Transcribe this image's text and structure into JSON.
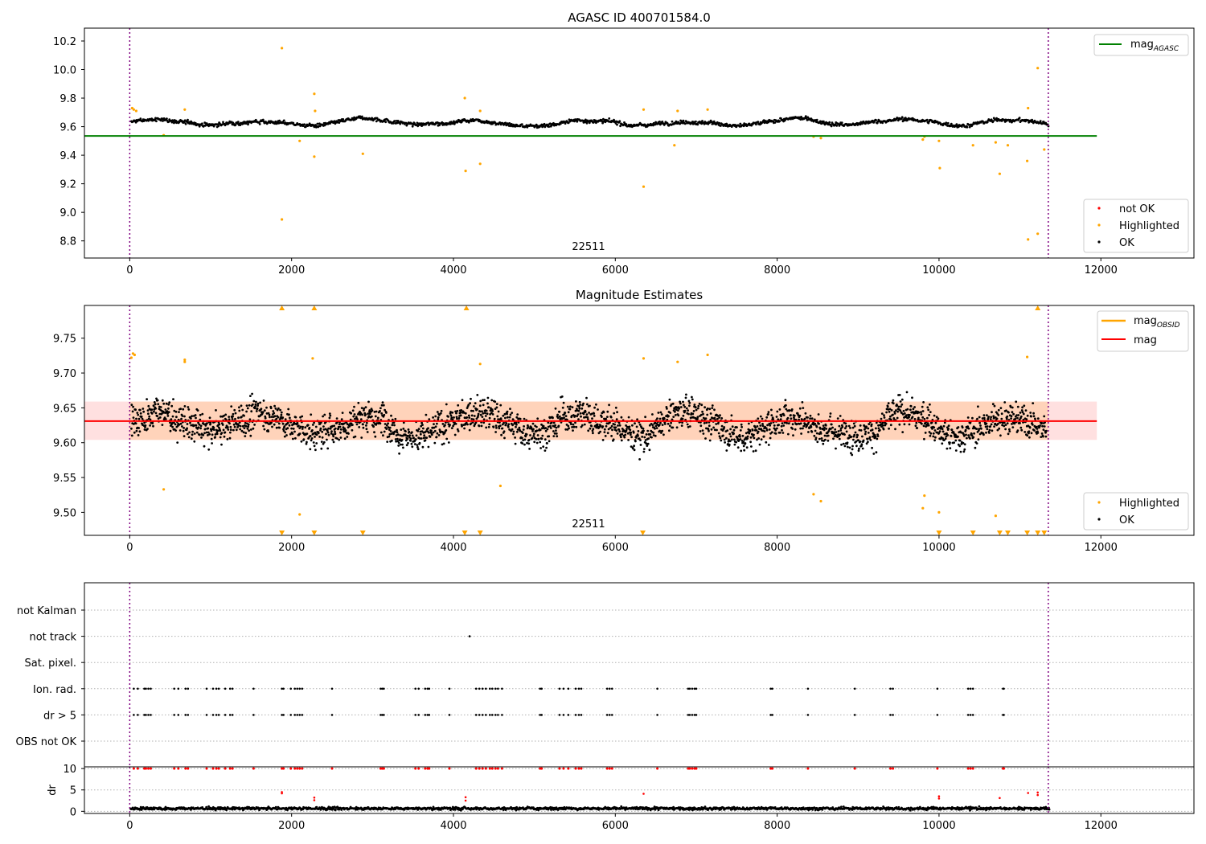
{
  "figure": {
    "panel1_title": "AGASC ID 400701584.0",
    "panel2_title": "Magnitude Estimates"
  },
  "colors": {
    "ok": "#000000",
    "highlighted": "#ffa500",
    "not_ok": "#ff0000",
    "mag_agasc": "#008000",
    "mag_obsid": "#ffa500",
    "mag": "#ff0000",
    "boundary": "#800080",
    "band_outer": "#ffdddd",
    "band_inner": "#ffd0b0"
  },
  "chart_data": [
    {
      "type": "scatter",
      "title": "AGASC ID 400701584.0",
      "xlabel": "",
      "ylabel": "",
      "xlim": [
        -560,
        13150
      ],
      "ylim": [
        8.68,
        10.29
      ],
      "xticks": [
        0,
        2000,
        4000,
        6000,
        8000,
        10000,
        12000
      ],
      "yticks": [
        8.8,
        9.0,
        9.2,
        9.4,
        9.6,
        9.8,
        10.0,
        10.2
      ],
      "grid": false,
      "obsid_label": "22511",
      "obsid_label_x": 5700,
      "obs_boundaries": [
        0,
        11350
      ],
      "hline": {
        "name": "mag_AGASC",
        "y": 9.535,
        "x0": -560,
        "x1": 11950
      },
      "ok_band": {
        "center": 9.63,
        "amplitude": 0.03,
        "noise": 0.012
      },
      "legend_lines": [
        {
          "name": "mag",
          "sub": "AGASC",
          "color_key": "mag_agasc"
        }
      ],
      "legend_lines_position": "upper right",
      "legend_points": [
        {
          "name": "not OK",
          "color_key": "not_ok"
        },
        {
          "name": "Highlighted",
          "color_key": "highlighted"
        },
        {
          "name": "OK",
          "color_key": "ok"
        }
      ],
      "legend_points_position": "lower right",
      "series": [
        {
          "name": "Highlighted",
          "points": [
            [
              30,
              9.73
            ],
            [
              50,
              9.72
            ],
            [
              80,
              9.71
            ],
            [
              420,
              9.54
            ],
            [
              680,
              9.72
            ],
            [
              1880,
              10.15
            ],
            [
              1880,
              8.95
            ],
            [
              2100,
              9.5
            ],
            [
              2280,
              9.83
            ],
            [
              2280,
              9.39
            ],
            [
              2290,
              9.71
            ],
            [
              2880,
              9.41
            ],
            [
              4140,
              9.8
            ],
            [
              4150,
              9.29
            ],
            [
              4330,
              9.34
            ],
            [
              4330,
              9.71
            ],
            [
              6350,
              9.72
            ],
            [
              6350,
              9.18
            ],
            [
              6730,
              9.47
            ],
            [
              6770,
              9.71
            ],
            [
              7140,
              9.72
            ],
            [
              8450,
              9.53
            ],
            [
              8540,
              9.52
            ],
            [
              9800,
              9.51
            ],
            [
              9820,
              9.53
            ],
            [
              10000,
              9.5
            ],
            [
              10010,
              9.31
            ],
            [
              10420,
              9.47
            ],
            [
              10700,
              9.49
            ],
            [
              10750,
              9.27
            ],
            [
              10850,
              9.47
            ],
            [
              11090,
              9.36
            ],
            [
              11100,
              8.81
            ],
            [
              11100,
              9.73
            ],
            [
              11220,
              10.01
            ],
            [
              11220,
              8.85
            ],
            [
              11300,
              9.44
            ]
          ]
        }
      ]
    },
    {
      "type": "scatter",
      "title": "Magnitude Estimates",
      "xlabel": "",
      "ylabel": "",
      "xlim": [
        -560,
        13150
      ],
      "ylim": [
        9.467,
        9.797
      ],
      "xticks": [
        0,
        2000,
        4000,
        6000,
        8000,
        10000,
        12000
      ],
      "yticks": [
        9.5,
        9.55,
        9.6,
        9.65,
        9.7,
        9.75
      ],
      "ytick_labels": [
        "9.50",
        "9.55",
        "9.60",
        "9.65",
        "9.70",
        "9.75"
      ],
      "grid": false,
      "obsid_label": "22511",
      "obsid_label_x": 5700,
      "obs_boundaries": [
        0,
        11350
      ],
      "mag_line": {
        "name": "mag",
        "y": 9.631,
        "x0": -560,
        "x1": 11950
      },
      "mag_obsid_band": {
        "y0": 9.604,
        "y1": 9.659,
        "x0": -560,
        "x1": 11950
      },
      "ok_band": {
        "center": 9.628,
        "amplitude": 0.022,
        "noise": 0.022
      },
      "legend_lines": [
        {
          "name": "mag",
          "sub": "OBSID",
          "color_key": "mag_obsid"
        },
        {
          "name": "mag",
          "sub": "",
          "color_key": "mag"
        }
      ],
      "legend_lines_position": "upper right",
      "legend_points": [
        {
          "name": "Highlighted",
          "color_key": "highlighted"
        },
        {
          "name": "OK",
          "color_key": "ok"
        }
      ],
      "legend_points_position": "lower right",
      "series": [
        {
          "name": "Highlighted",
          "points": [
            [
              20,
              9.722
            ],
            [
              40,
              9.728
            ],
            [
              60,
              9.726
            ],
            [
              420,
              9.533
            ],
            [
              680,
              9.716
            ],
            [
              680,
              9.719
            ],
            [
              2100,
              9.497
            ],
            [
              2260,
              9.721
            ],
            [
              4330,
              9.713
            ],
            [
              4580,
              9.538
            ],
            [
              6350,
              9.721
            ],
            [
              6770,
              9.716
            ],
            [
              7140,
              9.726
            ],
            [
              8450,
              9.526
            ],
            [
              8540,
              9.516
            ],
            [
              9800,
              9.506
            ],
            [
              9820,
              9.524
            ],
            [
              10000,
              9.5
            ],
            [
              10700,
              9.495
            ],
            [
              11090,
              9.723
            ]
          ]
        },
        {
          "name": "Highlighted (above range)",
          "x": [
            1880,
            2280,
            4160,
            11220
          ]
        },
        {
          "name": "Highlighted (below range)",
          "x": [
            1880,
            2280,
            2880,
            4140,
            4330,
            6340,
            10000,
            10420,
            10750,
            10850,
            11090,
            11220,
            11300
          ]
        }
      ]
    },
    {
      "type": "scatter",
      "title": "",
      "xlabel": "",
      "ylabel": "",
      "xlim": [
        -560,
        13150
      ],
      "xticks": [
        0,
        2000,
        4000,
        6000,
        8000,
        10000,
        12000
      ],
      "obs_boundaries": [
        0,
        11350
      ],
      "categories": [
        "not Kalman",
        "not track",
        "Sat. pixel.",
        "Ion. rad.",
        "dr > 5",
        "OBS not OK"
      ],
      "grid": true,
      "series": [
        {
          "name": "not track",
          "x": [
            4200
          ]
        },
        {
          "name": "Ion. rad.",
          "x": [
            50,
            100,
            180,
            200,
            230,
            260,
            550,
            600,
            690,
            720,
            950,
            1030,
            1070,
            1100,
            1180,
            1240,
            1270,
            1530,
            1880,
            1900,
            1990,
            2040,
            2070,
            2100,
            2130,
            2500,
            3100,
            3120,
            3140,
            3530,
            3570,
            3650,
            3680,
            3700,
            3950,
            4280,
            4320,
            4360,
            4400,
            4450,
            4480,
            4520,
            4550,
            4600,
            5070,
            5090,
            5310,
            5360,
            5420,
            5510,
            5550,
            5580,
            5900,
            5930,
            5960,
            6520,
            6900,
            6920,
            6950,
            6980,
            7000,
            7920,
            7940,
            8380,
            8960,
            9400,
            9430,
            9980,
            10360,
            10390,
            10420,
            10790,
            10800
          ]
        },
        {
          "name": "dr > 5",
          "x": [
            50,
            100,
            180,
            200,
            230,
            260,
            550,
            600,
            690,
            720,
            950,
            1030,
            1070,
            1100,
            1180,
            1240,
            1270,
            1530,
            1880,
            1900,
            1990,
            2040,
            2070,
            2100,
            2130,
            2500,
            3100,
            3120,
            3140,
            3530,
            3570,
            3650,
            3680,
            3700,
            3950,
            4280,
            4320,
            4360,
            4400,
            4450,
            4480,
            4520,
            4550,
            4600,
            5070,
            5090,
            5310,
            5360,
            5420,
            5510,
            5550,
            5580,
            5900,
            5930,
            5960,
            6520,
            6900,
            6920,
            6950,
            6980,
            7000,
            7920,
            7940,
            8380,
            8960,
            9400,
            9430,
            9980,
            10360,
            10390,
            10420,
            10790,
            10800
          ]
        }
      ]
    },
    {
      "type": "scatter",
      "title": "",
      "xlabel": "",
      "ylabel": "dr",
      "xlim": [
        -560,
        13150
      ],
      "ylim": [
        -0.5,
        10.4
      ],
      "xticks": [
        0,
        2000,
        4000,
        6000,
        8000,
        10000,
        12000
      ],
      "yticks": [
        0,
        5,
        10
      ],
      "grid": true,
      "obs_boundaries": [
        0,
        11350
      ],
      "ok_band": {
        "center": 0.6,
        "amplitude": 0.2,
        "noise": 0.3
      },
      "series": [
        {
          "name": "not OK (dr > 10)",
          "x": [
            50,
            100,
            180,
            200,
            230,
            260,
            550,
            600,
            690,
            720,
            950,
            1030,
            1070,
            1100,
            1180,
            1240,
            1270,
            1530,
            1880,
            1900,
            1990,
            2040,
            2070,
            2100,
            2130,
            2500,
            3100,
            3120,
            3140,
            3530,
            3570,
            3650,
            3680,
            3700,
            3950,
            4280,
            4320,
            4360,
            4400,
            4450,
            4480,
            4520,
            4550,
            4600,
            5070,
            5090,
            5310,
            5360,
            5420,
            5510,
            5550,
            5580,
            5900,
            5930,
            5960,
            6520,
            6900,
            6920,
            6950,
            6980,
            7000,
            7920,
            7940,
            8380,
            8960,
            9400,
            9430,
            9980,
            10360,
            10390,
            10420,
            10790,
            10800
          ]
        },
        {
          "name": "not OK",
          "points": [
            [
              1880,
              4.5
            ],
            [
              1880,
              4.2
            ],
            [
              2280,
              3.2
            ],
            [
              2280,
              2.6
            ],
            [
              4150,
              3.3
            ],
            [
              4150,
              2.5
            ],
            [
              6350,
              4.1
            ],
            [
              10000,
              3.5
            ],
            [
              10000,
              3.0
            ],
            [
              10750,
              3.1
            ],
            [
              11100,
              4.3
            ],
            [
              11220,
              4.4
            ],
            [
              11220,
              3.8
            ]
          ]
        }
      ]
    }
  ]
}
